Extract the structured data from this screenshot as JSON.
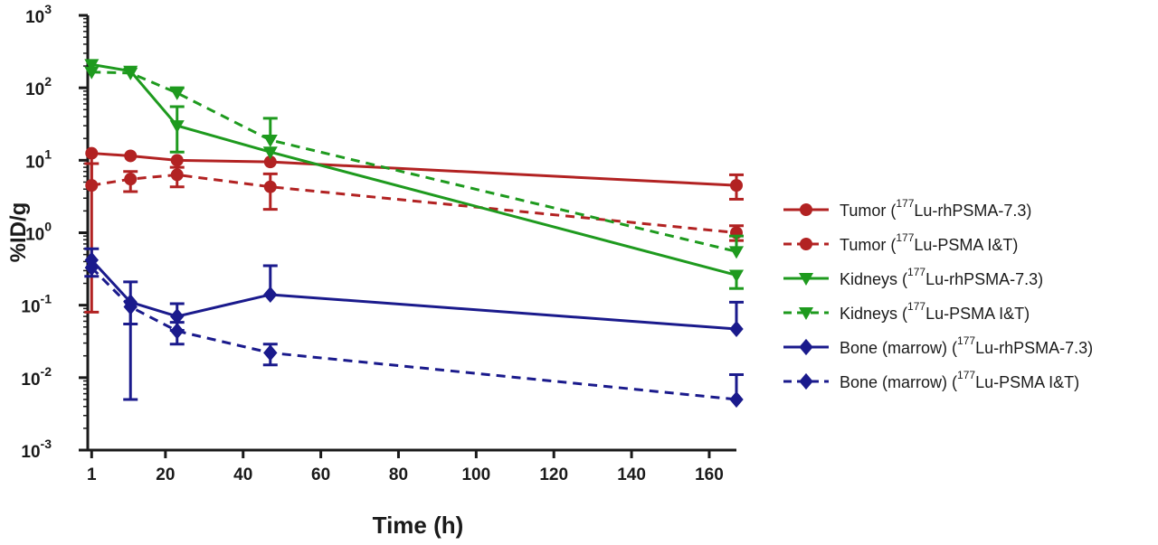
{
  "chart_data": {
    "type": "line",
    "xlabel": "Time (h)",
    "ylabel": "%ID/g",
    "x_scale": "linear",
    "y_scale": "log",
    "xlim": [
      0,
      167
    ],
    "ylim": [
      0.001,
      1000
    ],
    "x_ticks": [
      {
        "value": 1,
        "label": "1"
      },
      {
        "value": 20,
        "label": "20"
      },
      {
        "value": 40,
        "label": "40"
      },
      {
        "value": 60,
        "label": "60"
      },
      {
        "value": 80,
        "label": "80"
      },
      {
        "value": 100,
        "label": "100"
      },
      {
        "value": 120,
        "label": "120"
      },
      {
        "value": 140,
        "label": "140"
      },
      {
        "value": 160,
        "label": "160"
      }
    ],
    "y_ticks": [
      {
        "value": 0.001,
        "base": "10",
        "exp": "-3"
      },
      {
        "value": 0.01,
        "base": "10",
        "exp": "-2"
      },
      {
        "value": 0.1,
        "base": "10",
        "exp": "-1"
      },
      {
        "value": 1,
        "base": "10",
        "exp": "0"
      },
      {
        "value": 10,
        "base": "10",
        "exp": "1"
      },
      {
        "value": 100,
        "base": "10",
        "exp": "2"
      },
      {
        "value": 1000,
        "base": "10",
        "exp": "3"
      }
    ],
    "legend_position": "right",
    "grid": false,
    "series": [
      {
        "name_pre": "Tumor (",
        "name_sup": "177",
        "name_post": "Lu-rhPSMA-7.3)",
        "color": "#b22222",
        "dashed": false,
        "marker": "circle",
        "x": [
          1,
          11,
          23,
          47,
          167
        ],
        "y": [
          12.5,
          11.5,
          10.0,
          9.5,
          4.5
        ],
        "err_up": [
          0,
          0,
          0,
          0,
          6.3
        ],
        "err_down": [
          0.08,
          0,
          0,
          0,
          2.9
        ]
      },
      {
        "name_pre": "Tumor (",
        "name_sup": "177",
        "name_post": "Lu-PSMA I&T)",
        "color": "#b22222",
        "dashed": true,
        "marker": "circle",
        "x": [
          1,
          11,
          23,
          47,
          167
        ],
        "y": [
          4.5,
          5.5,
          6.3,
          4.3,
          1.0
        ],
        "err_up": [
          9.0,
          7.0,
          8.0,
          6.5,
          1.25
        ],
        "err_down": [
          0,
          3.7,
          4.3,
          2.1,
          0.78
        ]
      },
      {
        "name_pre": "Kidneys (",
        "name_sup": "177",
        "name_post": "Lu-rhPSMA-7.3)",
        "color": "#1e9a1e",
        "dashed": false,
        "marker": "triangle-down",
        "x": [
          1,
          11,
          23,
          47,
          167
        ],
        "y": [
          210,
          170,
          30,
          13,
          0.26
        ],
        "err_up": [
          0,
          0,
          55,
          0,
          0
        ],
        "err_down": [
          0,
          0,
          13,
          0,
          0.17
        ]
      },
      {
        "name_pre": "Kidneys (",
        "name_sup": "177",
        "name_post": "Lu-PSMA I&T)",
        "color": "#1e9a1e",
        "dashed": true,
        "marker": "triangle-down",
        "x": [
          1,
          11,
          23,
          47,
          167
        ],
        "y": [
          165,
          160,
          85,
          19,
          0.55
        ],
        "err_up": [
          0,
          0,
          100,
          38,
          0.9
        ],
        "err_down": [
          0,
          0,
          0,
          0,
          0
        ]
      },
      {
        "name_pre": "Bone (marrow) (",
        "name_sup": "177",
        "name_post": "Lu-rhPSMA-7.3)",
        "color": "#1a1a8c",
        "dashed": false,
        "marker": "diamond",
        "x": [
          1,
          11,
          23,
          47,
          167
        ],
        "y": [
          0.42,
          0.11,
          0.07,
          0.14,
          0.047
        ],
        "err_up": [
          0.6,
          0.21,
          0.105,
          0.35,
          0.11
        ],
        "err_down": [
          0.25,
          0.005,
          0.045,
          0,
          0
        ]
      },
      {
        "name_pre": "Bone (marrow) (",
        "name_sup": "177",
        "name_post": "Lu-PSMA I&T)",
        "color": "#1a1a8c",
        "dashed": true,
        "marker": "diamond",
        "x": [
          1,
          11,
          23,
          47,
          167
        ],
        "y": [
          0.33,
          0.095,
          0.044,
          0.022,
          0.005
        ],
        "err_up": [
          0,
          0,
          0.058,
          0.029,
          0.011
        ],
        "err_down": [
          0,
          0.055,
          0.029,
          0.015,
          0
        ]
      }
    ]
  }
}
